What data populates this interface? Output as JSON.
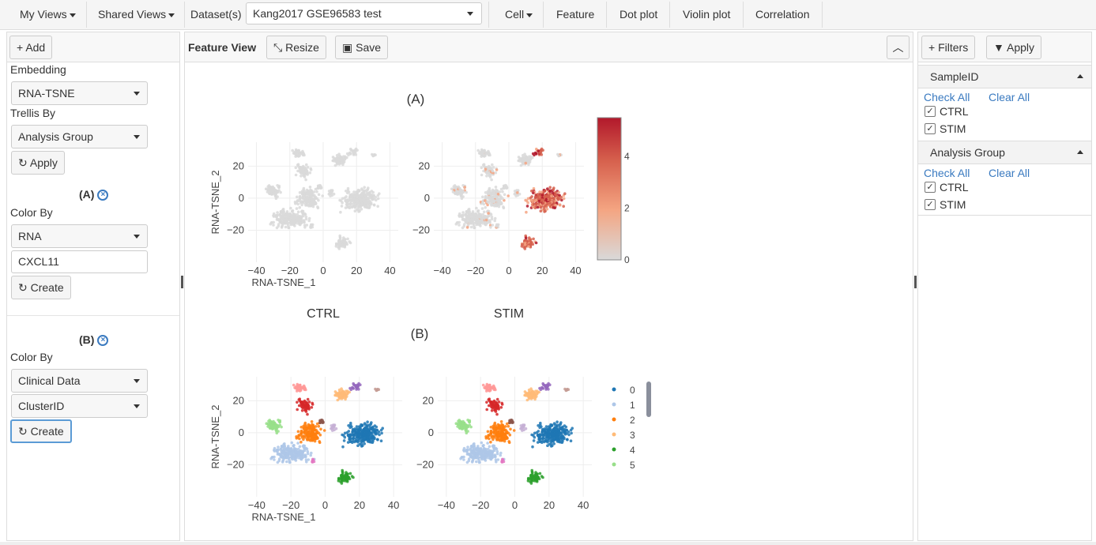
{
  "topbar": {
    "my_views": "My Views",
    "shared_views": "Shared Views",
    "datasets_label": "Dataset(s)",
    "dataset_value": "Kang2017 GSE96583 test",
    "cell": "Cell",
    "feature": "Feature",
    "dot_plot": "Dot plot",
    "violin_plot": "Violin plot",
    "correlation": "Correlation"
  },
  "left": {
    "add_label": "Add",
    "embedding_label": "Embedding",
    "embedding_value": "RNA-TSNE",
    "trellis_label": "Trellis By",
    "trellis_value": "Analysis Group",
    "apply_label": "Apply",
    "plot_a": {
      "title": "(A)",
      "color_by_label": "Color By",
      "color_by_value": "RNA",
      "feature_value": "CXCL11",
      "create_label": "Create"
    },
    "plot_b": {
      "title": "(B)",
      "color_by_label": "Color By",
      "color_by_value": "Clinical Data",
      "field_value": "ClusterID",
      "create_label": "Create"
    }
  },
  "center": {
    "title": "Feature View",
    "resize_label": "Resize",
    "save_label": "Save"
  },
  "right": {
    "filters_label": "Filters",
    "apply_label": "Apply",
    "groups": [
      {
        "title": "SampleID",
        "check_all": "Check All",
        "clear_all": "Clear All",
        "options": [
          "CTRL",
          "STIM"
        ]
      },
      {
        "title": "Analysis Group",
        "check_all": "Check All",
        "clear_all": "Clear All",
        "options": [
          "CTRL",
          "STIM"
        ]
      }
    ]
  },
  "colors": {
    "cluster_palette": [
      "#1f77b4",
      "#aec7e8",
      "#ff7f0e",
      "#ffbb78",
      "#2ca02c",
      "#98df8a",
      "#d62728",
      "#ff9896",
      "#9467bd",
      "#c5b0d5",
      "#8c564b",
      "#c49c94",
      "#e377c2"
    ],
    "expression_low": "#d9d9d9",
    "expression_mid": "#f4a582",
    "expression_high": "#b2182b",
    "link": "#3a7ac0"
  },
  "chart_data": [
    {
      "type": "scatter",
      "title": "(A)",
      "panels": [
        "CTRL",
        "STIM"
      ],
      "xlabel": "RNA-TSNE_1",
      "ylabel": "RNA-TSNE_2",
      "xlim": [
        -45,
        45
      ],
      "ylim": [
        -40,
        35
      ],
      "xticks": [
        -40,
        -20,
        0,
        20,
        40
      ],
      "yticks": [
        -20,
        0,
        20
      ],
      "color_by": "CXCL11 expression",
      "colorbar_range": [
        0,
        5.5
      ],
      "colorbar_ticks": [
        0,
        2,
        4
      ]
    },
    {
      "type": "scatter",
      "title": "(B)",
      "panels": [
        "CTRL",
        "STIM"
      ],
      "xlabel": "RNA-TSNE_1",
      "ylabel": "RNA-TSNE_2",
      "xlim": [
        -45,
        45
      ],
      "ylim": [
        -40,
        35
      ],
      "xticks": [
        -40,
        -20,
        0,
        20,
        40
      ],
      "yticks": [
        -20,
        0,
        20
      ],
      "legend": [
        "0",
        "1",
        "2",
        "3",
        "4",
        "5"
      ],
      "legend_placement": "right"
    }
  ]
}
